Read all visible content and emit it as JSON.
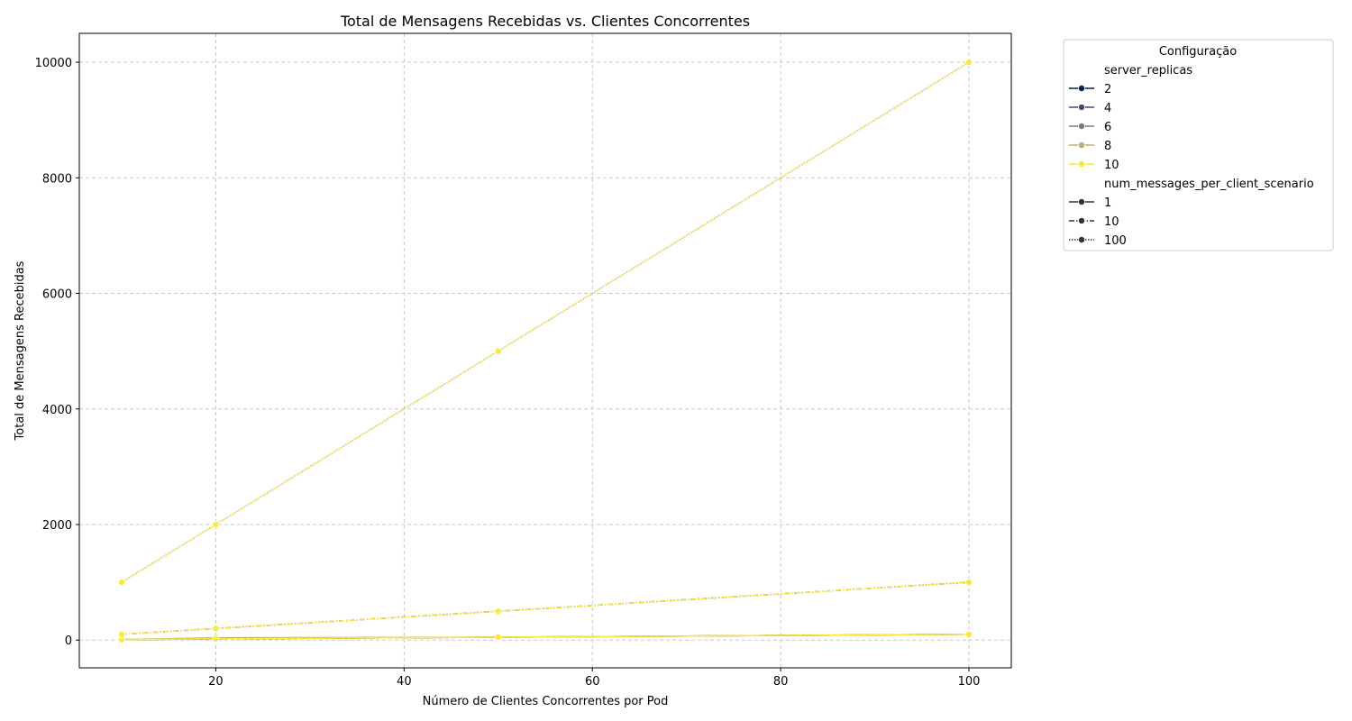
{
  "chart_data": {
    "type": "line",
    "title": "Total de Mensagens Recebidas vs. Clientes Concorrentes",
    "xlabel": "Número de Clientes Concorrentes por Pod",
    "ylabel": "Total de Mensagens Recebidas",
    "xlim": [
      5.5,
      104.5
    ],
    "ylim": [
      -480,
      10500
    ],
    "xticks": [
      20,
      40,
      60,
      80,
      100
    ],
    "yticks": [
      0,
      2000,
      4000,
      6000,
      8000,
      10000
    ],
    "grid": true,
    "legend": {
      "title": "Configuração",
      "placement": "outside top-right",
      "hue_title": "server_replicas",
      "hue_items": [
        {
          "label": "2",
          "color": "#00224e"
        },
        {
          "label": "4",
          "color": "#414d6b"
        },
        {
          "label": "6",
          "color": "#7c7b78"
        },
        {
          "label": "8",
          "color": "#bcaf6f"
        },
        {
          "label": "10",
          "color": "#fee838"
        }
      ],
      "style_title": "num_messages_per_client_scenario",
      "style_items": [
        {
          "label": "1",
          "dash": "solid"
        },
        {
          "label": "10",
          "dash": "dashed"
        },
        {
          "label": "100",
          "dash": "dotted"
        }
      ]
    },
    "series": [
      {
        "replicas": "2",
        "messages": "1",
        "x": [
          20
        ],
        "y": [
          20
        ]
      },
      {
        "replicas": "2",
        "messages": "10",
        "x": [
          20
        ],
        "y": [
          200
        ]
      },
      {
        "replicas": "2",
        "messages": "100",
        "x": [
          20
        ],
        "y": [
          2000
        ]
      },
      {
        "replicas": "4",
        "messages": "1",
        "x": [
          10,
          20,
          50,
          100
        ],
        "y": [
          10,
          20,
          50,
          100
        ]
      },
      {
        "replicas": "4",
        "messages": "10",
        "x": [
          10,
          20,
          50,
          100
        ],
        "y": [
          100,
          200,
          500,
          1000
        ]
      },
      {
        "replicas": "4",
        "messages": "100",
        "x": [
          10,
          20,
          50,
          100
        ],
        "y": [
          1000,
          2000,
          5000,
          10000
        ]
      },
      {
        "replicas": "6",
        "messages": "1",
        "x": [
          10,
          20,
          50,
          100
        ],
        "y": [
          10,
          20,
          50,
          100
        ]
      },
      {
        "replicas": "6",
        "messages": "10",
        "x": [
          10,
          20,
          50,
          100
        ],
        "y": [
          100,
          200,
          500,
          1000
        ]
      },
      {
        "replicas": "6",
        "messages": "100",
        "x": [
          10,
          20,
          50,
          100
        ],
        "y": [
          1000,
          2000,
          5000,
          10000
        ]
      },
      {
        "replicas": "8",
        "messages": "1",
        "x": [
          10,
          20,
          50,
          100
        ],
        "y": [
          10,
          40,
          50,
          100
        ]
      },
      {
        "replicas": "8",
        "messages": "10",
        "x": [
          10,
          20,
          50,
          100
        ],
        "y": [
          100,
          200,
          500,
          1000
        ]
      },
      {
        "replicas": "8",
        "messages": "100",
        "x": [
          10,
          20,
          50,
          100
        ],
        "y": [
          1000,
          2000,
          5000,
          10000
        ]
      },
      {
        "replicas": "10",
        "messages": "1",
        "x": [
          10,
          20,
          50,
          100
        ],
        "y": [
          10,
          20,
          50,
          100
        ]
      },
      {
        "replicas": "10",
        "messages": "10",
        "x": [
          10,
          20,
          50,
          100
        ],
        "y": [
          100,
          200,
          500,
          1000
        ]
      },
      {
        "replicas": "10",
        "messages": "100",
        "x": [
          10,
          20,
          50,
          100
        ],
        "y": [
          1000,
          2000,
          5000,
          10000
        ]
      }
    ]
  }
}
